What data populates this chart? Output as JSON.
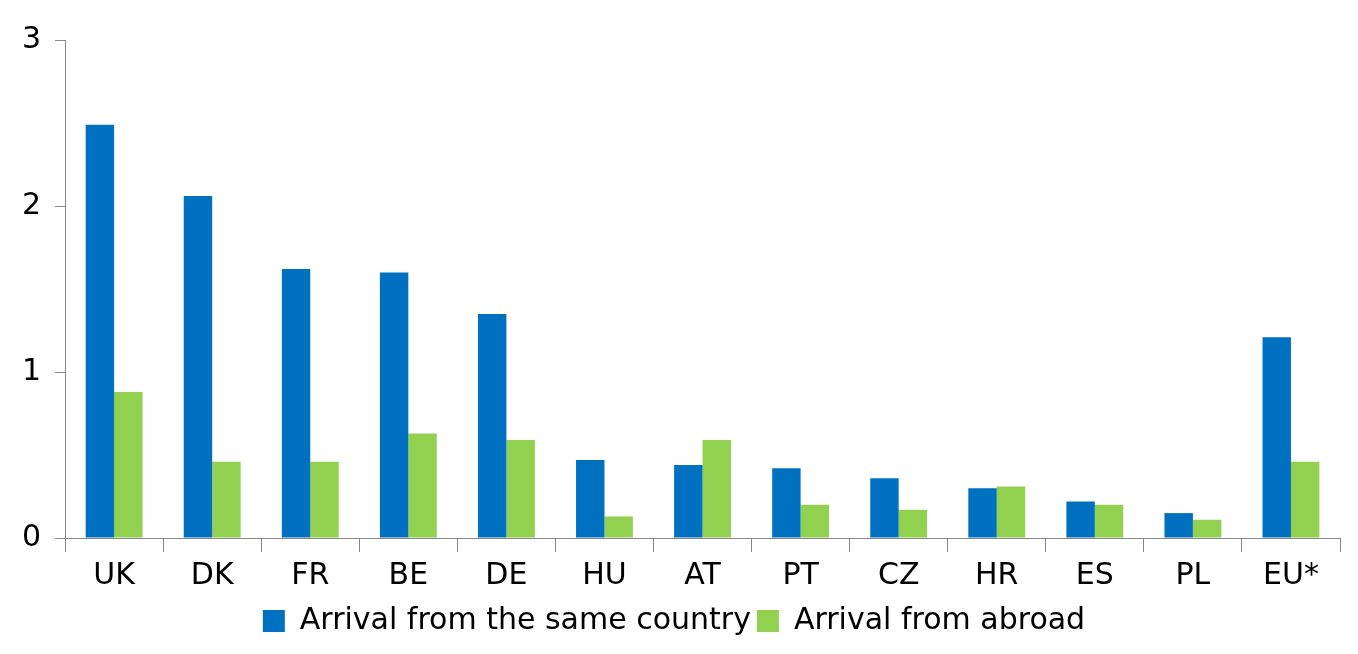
{
  "chart_data": {
    "type": "bar",
    "categories": [
      "UK",
      "DK",
      "FR",
      "BE",
      "DE",
      "HU",
      "AT",
      "PT",
      "CZ",
      "HR",
      "ES",
      "PL",
      "EU*"
    ],
    "series": [
      {
        "name": "Arrival from the same country",
        "color": "#0070c0",
        "values": [
          2.49,
          2.06,
          1.62,
          1.6,
          1.35,
          0.47,
          0.44,
          0.42,
          0.36,
          0.3,
          0.22,
          0.15,
          1.21
        ]
      },
      {
        "name": "Arrival from abroad",
        "color": "#92d050",
        "values": [
          0.88,
          0.46,
          0.46,
          0.63,
          0.59,
          0.13,
          0.59,
          0.2,
          0.17,
          0.31,
          0.2,
          0.11,
          0.46
        ]
      }
    ],
    "ylim": [
      0,
      3
    ],
    "yticks": [
      0,
      1,
      2,
      3
    ],
    "grid": false,
    "legend": "bottom"
  }
}
